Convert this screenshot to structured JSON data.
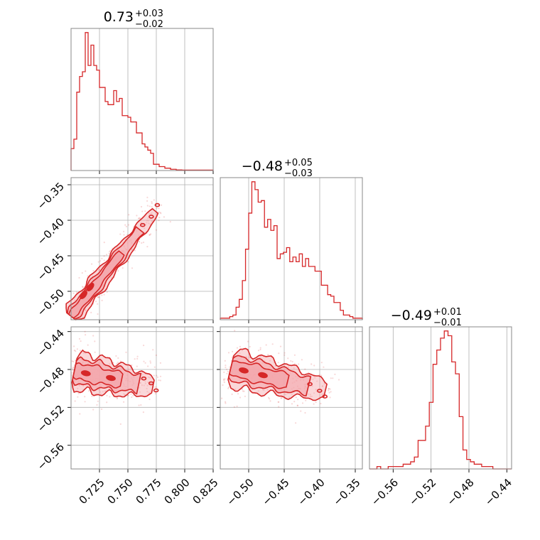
{
  "colors": {
    "accent": "#d62728",
    "fill": "#f4a6ab",
    "grid": "#b0b0b0",
    "frame": "#888888"
  },
  "chart_data": {
    "type": "corner",
    "parameters": [
      {
        "title": {
          "median": "0.73",
          "plus": "+0.03",
          "minus": "−0.02"
        },
        "range": [
          0.7,
          0.825
        ],
        "ticks": [
          0.725,
          0.75,
          0.775,
          0.8,
          0.825
        ],
        "tick_labels": [
          "0.725",
          "0.750",
          "0.775",
          "0.800",
          "0.825"
        ],
        "hist_counts": [
          14,
          20,
          50,
          60,
          63,
          88,
          67,
          80,
          67,
          64,
          53,
          53,
          44,
          42,
          42,
          51,
          44,
          46,
          35,
          35,
          34,
          31,
          31,
          24,
          24,
          17,
          15,
          13,
          11,
          4,
          4,
          2.5,
          2.5,
          1.5,
          1.5,
          0.8,
          0.8,
          0.4,
          0.4,
          0.3,
          0.3,
          0.3,
          0.3,
          0.3,
          0.3,
          0.3,
          0.3,
          0.3,
          0.3,
          0.3
        ]
      },
      {
        "title": {
          "median": "−0.48",
          "plus": "+0.05",
          "minus": "−0.03"
        },
        "range": [
          -0.54,
          -0.34
        ],
        "ticks": [
          -0.5,
          -0.45,
          -0.4,
          -0.35
        ],
        "tick_labels": [
          "−0.50",
          "−0.45",
          "−0.40",
          "−0.35"
        ],
        "hist_counts": [
          1,
          1,
          1,
          2,
          3,
          8,
          13,
          25,
          45,
          68,
          88,
          83,
          75,
          76,
          59,
          64,
          57,
          60,
          39,
          42,
          43,
          46,
          37,
          40,
          37,
          42,
          34,
          39,
          34,
          34,
          31,
          31,
          22,
          22,
          16,
          15,
          11,
          11,
          6,
          3,
          3,
          2,
          1,
          1,
          1
        ]
      },
      {
        "title": {
          "median": "−0.49",
          "plus": "+0.01",
          "minus": "−0.01"
        },
        "range": [
          -0.585,
          -0.435
        ],
        "ticks": [
          -0.56,
          -0.52,
          -0.48,
          -0.44
        ],
        "tick_labels": [
          "−0.56",
          "−0.52",
          "−0.48",
          "−0.44"
        ],
        "hist_counts": [
          0,
          0,
          1,
          0,
          0,
          1,
          1,
          1,
          1,
          2,
          2,
          3,
          5,
          12,
          12,
          18,
          28,
          44,
          50,
          55,
          58,
          56,
          45,
          40,
          22,
          8,
          4,
          3,
          2,
          2,
          1,
          1,
          1,
          0,
          0,
          0,
          0,
          0
        ]
      }
    ],
    "pairs": [
      {
        "x": 0,
        "y": 1,
        "line": {
          "x0": 0.7,
          "y0": -0.535,
          "x1": 0.774,
          "y1": -0.387
        },
        "width": 0.006,
        "peaks": [
          {
            "x": 0.711,
            "y": -0.505
          },
          {
            "x": 0.717,
            "y": -0.494
          }
        ]
      },
      {
        "x": 0,
        "y": 2,
        "line": {
          "x0": 0.703,
          "y0": -0.481,
          "x1": 0.772,
          "y1": -0.498
        },
        "width": 0.009,
        "peaks": [
          {
            "x": 0.713,
            "y": -0.484
          },
          {
            "x": 0.735,
            "y": -0.489
          }
        ]
      },
      {
        "x": 1,
        "y": 2,
        "line": {
          "x0": -0.525,
          "y0": -0.478,
          "x1": -0.392,
          "y1": -0.502
        },
        "width": 0.009,
        "peaks": [
          {
            "x": -0.507,
            "y": -0.481
          },
          {
            "x": -0.48,
            "y": -0.486
          }
        ]
      }
    ]
  }
}
